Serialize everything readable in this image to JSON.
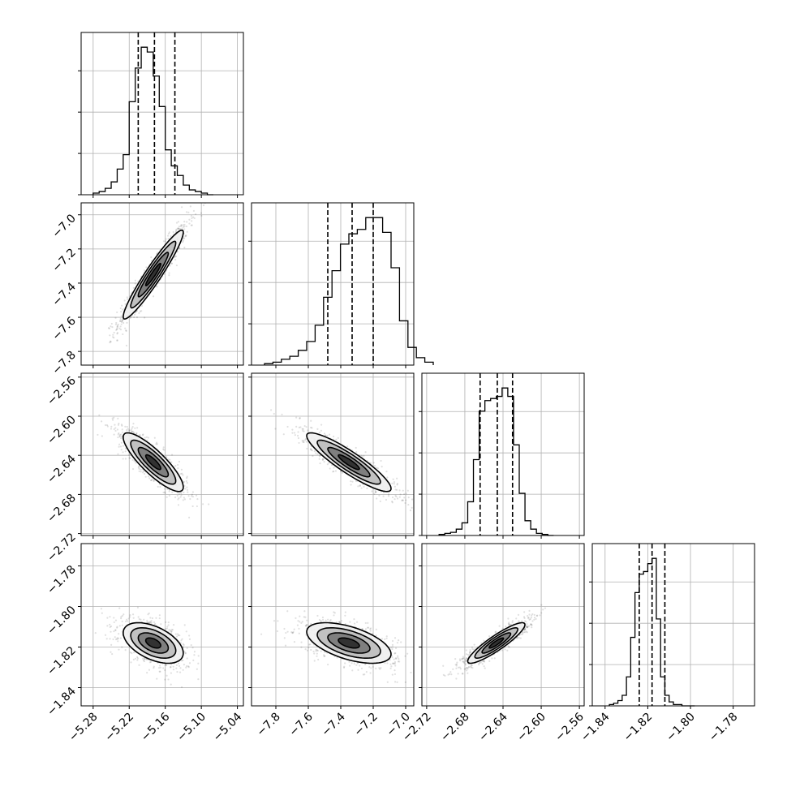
{
  "chart_data": {
    "type": "corner",
    "n_params": 4,
    "params": [
      {
        "name": "",
        "xlim": [
          -5.3,
          -5.03
        ],
        "ticks": [
          -5.28,
          -5.22,
          -5.16,
          -5.1,
          -5.04
        ],
        "tick_labels": [
          "−5.28",
          "−5.22",
          "−5.16",
          "−5.10",
          "−5.04"
        ],
        "mean": -5.18,
        "sigma": 0.025,
        "quantiles": [
          -5.205,
          -5.178,
          -5.144
        ],
        "hist_counts": [
          1,
          2,
          4,
          8,
          16,
          25,
          58,
          79,
          92,
          89,
          74,
          55,
          28,
          18,
          12,
          6,
          3,
          2,
          1,
          0
        ]
      },
      {
        "name": "",
        "xlim": [
          -7.95,
          -6.95
        ],
        "ticks": [
          -7.8,
          -7.6,
          -7.4,
          -7.2,
          -7.0
        ],
        "tick_labels": [
          "−7.8",
          "−7.6",
          "−7.4",
          "−7.2",
          "−7.0"
        ],
        "ylim": [
          -7.88,
          -6.93
        ],
        "yticks": [
          -7.0,
          -7.2,
          -7.4,
          -7.6,
          -7.8
        ],
        "ytick_labels": [
          "−7.0",
          "−7.2",
          "−7.4",
          "−7.6",
          "−7.8"
        ],
        "mean": -7.35,
        "sigma": 0.13,
        "quantiles": [
          -7.48,
          -7.33,
          -7.2
        ],
        "hist_counts": [
          1,
          2,
          4,
          6,
          10,
          16,
          27,
          46,
          64,
          82,
          89,
          92,
          100,
          100,
          90,
          66,
          30,
          12,
          5,
          2
        ]
      },
      {
        "name": "",
        "xlim": [
          -2.725,
          -2.555
        ],
        "ticks": [
          -2.72,
          -2.68,
          -2.64,
          -2.6,
          -2.56
        ],
        "tick_labels": [
          "−2.72",
          "−2.68",
          "−2.64",
          "−2.60",
          "−2.56"
        ],
        "ylim": [
          -2.722,
          -2.556
        ],
        "yticks": [
          -2.56,
          -2.6,
          -2.64,
          -2.68,
          -2.72
        ],
        "ytick_labels": [
          "−2.56",
          "−2.60",
          "−2.64",
          "−2.68",
          "−2.72"
        ],
        "mean": -2.647,
        "sigma": 0.015,
        "quantiles": [
          -2.664,
          -2.646,
          -2.63
        ],
        "hist_counts": [
          1,
          2,
          3,
          6,
          12,
          32,
          72,
          118,
          128,
          130,
          132,
          140,
          132,
          86,
          40,
          14,
          6,
          2,
          1,
          0
        ]
      },
      {
        "name": "",
        "xlim": [
          -1.846,
          -1.77
        ],
        "ticks": [
          -1.84,
          -1.82,
          -1.8,
          -1.78
        ],
        "tick_labels": [
          "−1.84",
          "−1.82",
          "−1.80",
          "−1.78"
        ],
        "ylim": [
          -1.849,
          -1.769
        ],
        "yticks": [
          -1.78,
          -1.8,
          -1.82,
          -1.84
        ],
        "ytick_labels": [
          "−1.78",
          "−1.80",
          "−1.82",
          "−1.84"
        ],
        "mean": -1.818,
        "sigma": 0.005,
        "quantiles": [
          -1.824,
          -1.818,
          -1.812
        ],
        "hist_counts": [
          1,
          2,
          4,
          8,
          22,
          52,
          86,
          100,
          102,
          108,
          112,
          66,
          22,
          8,
          3,
          1,
          1,
          0,
          0,
          0
        ]
      }
    ],
    "correlations": [
      [
        1,
        0.95,
        -0.85,
        -0.5
      ],
      [
        0.95,
        1,
        -0.9,
        -0.55
      ],
      [
        -0.85,
        -0.9,
        1,
        0.9
      ],
      [
        -0.5,
        -0.55,
        0.9,
        1
      ]
    ],
    "contour_levels_sigma": [
      0.5,
      1.0,
      1.5,
      2.0
    ],
    "contour_fill_colors": [
      "#f0f0f0",
      "#bdbdbd",
      "#7a7a7a",
      "#2b2b2b"
    ],
    "scatter_color": "#000000",
    "grid": true
  }
}
